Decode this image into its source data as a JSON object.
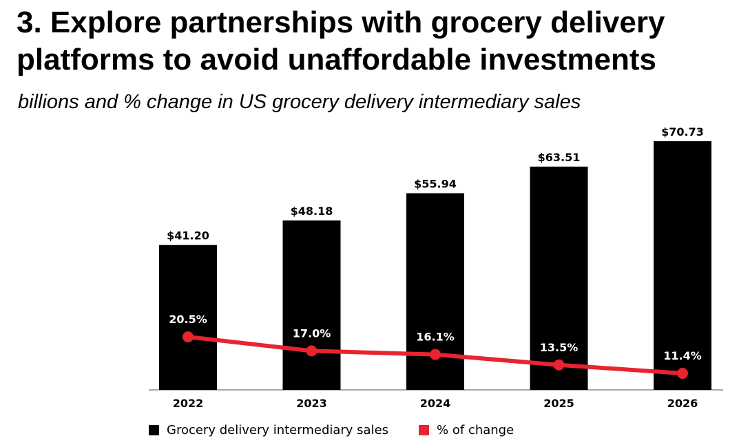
{
  "title_line1": "3. Explore partnerships with grocery delivery",
  "title_line2": "platforms to avoid unaffordable investments",
  "subtitle": "billions and % change in US grocery delivery intermediary sales",
  "colors": {
    "bar": "#000000",
    "line": "#e8242e",
    "text": "#000000"
  },
  "chart_data": {
    "type": "bar",
    "categories": [
      "2022",
      "2023",
      "2024",
      "2025",
      "2026"
    ],
    "series": [
      {
        "name": "Grocery delivery intermediary sales",
        "type": "bar",
        "values": [
          41.2,
          48.18,
          55.94,
          63.51,
          70.73
        ],
        "labels": [
          "$41.20",
          "$48.18",
          "$55.94",
          "$63.51",
          "$70.73"
        ]
      },
      {
        "name": "% of change",
        "type": "line",
        "values": [
          20.5,
          17.0,
          16.1,
          13.5,
          11.4
        ],
        "labels": [
          "20.5%",
          "17.0%",
          "16.1%",
          "13.5%",
          "11.4%"
        ]
      }
    ],
    "bar_ylim": [
      0,
      75
    ],
    "line_ylim": [
      10,
      25
    ],
    "grid": false,
    "legend_position": "bottom-left"
  }
}
